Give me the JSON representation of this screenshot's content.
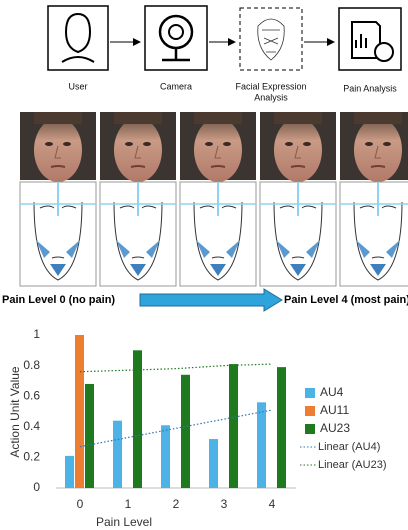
{
  "steps": [
    {
      "label": [
        "User"
      ]
    },
    {
      "label": [
        "Camera"
      ]
    },
    {
      "label": [
        "Facial Expression",
        "Analysis"
      ]
    },
    {
      "label": [
        "Pain Analysis"
      ]
    }
  ],
  "pain_scale": {
    "start": "Pain Level 0 (no pain)",
    "end": "Pain Level 4 (most pain)"
  },
  "chart_data": {
    "type": "bar",
    "x_label": "Pain Level",
    "y_label": "Action Unit Value",
    "categories": [
      "0",
      "1",
      "2",
      "3",
      "4"
    ],
    "series": [
      {
        "name": "AU4",
        "color": "#4db3e6",
        "values": [
          0.21,
          0.44,
          0.41,
          0.32,
          0.56
        ]
      },
      {
        "name": "AU11",
        "color": "#ed7d31",
        "values": [
          1.0,
          null,
          null,
          null,
          null
        ]
      },
      {
        "name": "AU23",
        "color": "#1f7a1f",
        "values": [
          0.68,
          0.9,
          0.74,
          0.81,
          0.79
        ]
      }
    ],
    "trendlines": [
      {
        "name": "Linear (AU4)",
        "color": "#2e75b6",
        "values": [
          0.27,
          0.33,
          0.39,
          0.45,
          0.51
        ]
      },
      {
        "name": "Linear (AU23)",
        "color": "#1f7a1f",
        "values": [
          0.76,
          0.77,
          0.78,
          0.8,
          0.81
        ]
      }
    ],
    "ylim": [
      0,
      1
    ],
    "yticks": [
      0,
      0.2,
      0.4,
      0.6,
      0.8,
      1
    ]
  }
}
